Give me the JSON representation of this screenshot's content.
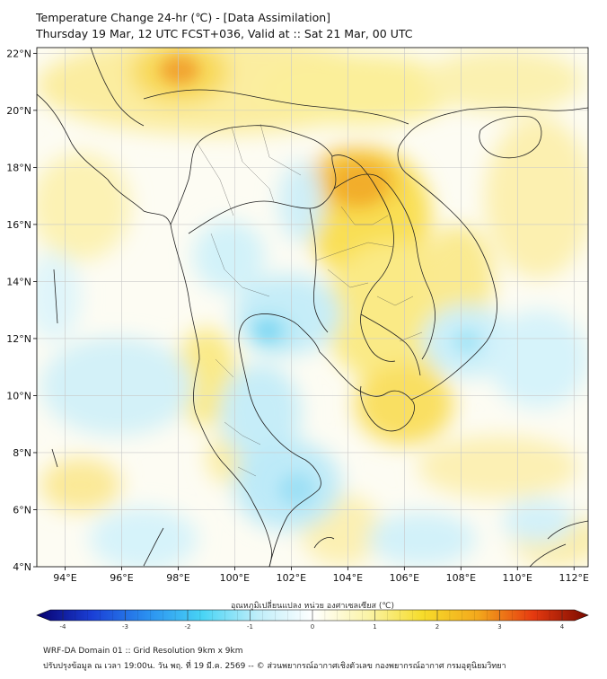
{
  "header": {
    "title_line1": "Temperature Change 24-hr (℃) - [Data Assimilation]",
    "title_line2": "Thursday 19 Mar, 12 UTC FCST+036, Valid at :: Sat 21 Mar, 00 UTC"
  },
  "map": {
    "lat_labels": [
      "22°N",
      "20°N",
      "18°N",
      "16°N",
      "14°N",
      "12°N",
      "10°N",
      "8°N",
      "6°N",
      "4°N"
    ],
    "lon_labels": [
      "94°E",
      "96°E",
      "98°E",
      "100°E",
      "102°E",
      "104°E",
      "106°E",
      "108°E",
      "110°E",
      "112°E"
    ],
    "lat_values": [
      22,
      20,
      18,
      16,
      14,
      12,
      10,
      8,
      6,
      4
    ],
    "lon_values": [
      94,
      96,
      98,
      100,
      102,
      104,
      106,
      108,
      110,
      112
    ],
    "extent": {
      "lon_min": 93.0,
      "lon_max": 112.5,
      "lat_min": 4.0,
      "lat_max": 22.2
    }
  },
  "colorbar": {
    "label": "อุณหภูมิเปลี่ยนแปลง หน่วย องศาเซลเซียส (℃)",
    "ticks": [
      "-4",
      "-3",
      "-2",
      "-1",
      "0",
      "1",
      "2",
      "3",
      "4"
    ],
    "tick_values": [
      -4,
      -3,
      -2,
      -1,
      0,
      1,
      2,
      3,
      4
    ],
    "min": -4,
    "max": 4,
    "stops": [
      "#08006e",
      "#1a3fd6",
      "#2a8ff0",
      "#48d4f5",
      "#bfeefa",
      "#ffffff",
      "#fbf4a8",
      "#f6dc2a",
      "#f3a81c",
      "#e63a10",
      "#7a0a00"
    ]
  },
  "footer": {
    "line1": "WRF-DA Domain 01 :: Grid Resolution 9km x 9km",
    "line2": "ปรับปรุงข้อมูล ณ เวลา 19:00น. วัน พฤ. ที่ 19 มี.ค. 2569 -- © ส่วนพยากรณ์อากาศเชิงตัวเลข กองพยากรณ์อากาศ กรมอุตุนิยมวิทยา"
  }
}
